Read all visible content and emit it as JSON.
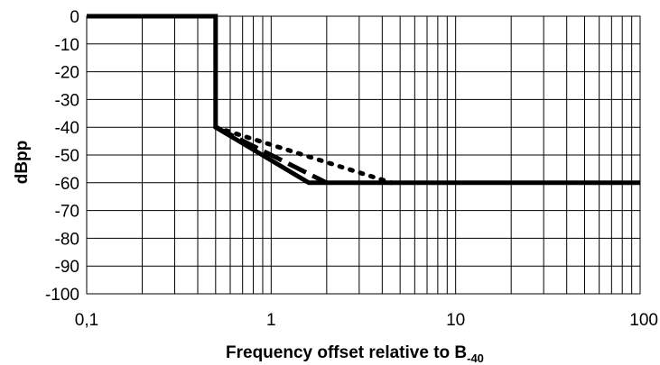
{
  "chart_data": {
    "type": "line",
    "title": "",
    "xlabel": "Frequency offset relative to B",
    "xlabel_subscript": "-40",
    "ylabel": "dBpp",
    "xscale": "log",
    "xlim": [
      0.1,
      100
    ],
    "ylim": [
      -100,
      0
    ],
    "xticks": [
      0.1,
      1,
      10,
      100
    ],
    "xtick_labels": [
      "0,1",
      "1",
      "10",
      "100"
    ],
    "yticks": [
      0,
      -10,
      -20,
      -30,
      -40,
      -50,
      -60,
      -70,
      -80,
      -90,
      -100
    ],
    "ytick_labels": [
      "0",
      "-10",
      "-20",
      "-30",
      "-40",
      "-50",
      "-60",
      "-70",
      "-80",
      "-90",
      "-100"
    ],
    "grid": true,
    "legend": "none",
    "series": [
      {
        "style": "solid",
        "color": "#000000",
        "x": [
          0.1,
          0.5,
          0.5,
          1.6,
          100
        ],
        "y": [
          0,
          0,
          -40,
          -60,
          -60
        ]
      },
      {
        "style": "dashed",
        "color": "#000000",
        "x": [
          0.5,
          2.0
        ],
        "y": [
          -40,
          -60
        ]
      },
      {
        "style": "dotted",
        "color": "#000000",
        "x": [
          0.5,
          4.5
        ],
        "y": [
          -40,
          -60
        ]
      }
    ]
  }
}
